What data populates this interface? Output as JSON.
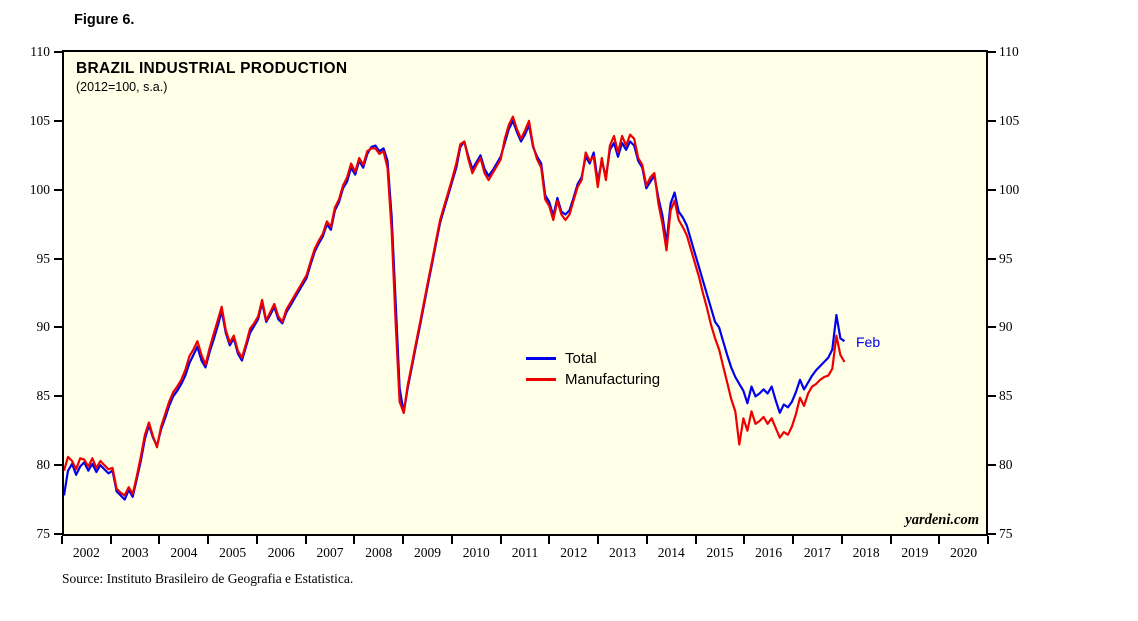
{
  "figure_label": "Figure 6.",
  "source": "Source: Instituto Brasileiro de Geografia e Estatistica.",
  "chart": {
    "title": "BRAZIL INDUSTRIAL PRODUCTION",
    "subtitle": "(2012=100, s.a.)",
    "watermark": "yardeni.com",
    "annotation": "Feb"
  },
  "colors": {
    "plot_background": "#fffee6",
    "frame_border": "#000000",
    "total_line": "#0000ee",
    "manufacturing_line": "#ee0000"
  },
  "chart_data": {
    "type": "line",
    "title": "BRAZIL INDUSTRIAL PRODUCTION",
    "subtitle": "(2012=100, s.a.)",
    "frequency": "monthly",
    "x_start": "2002-01",
    "x_end": "2018-02",
    "x_axis_years": [
      2002,
      2003,
      2004,
      2005,
      2006,
      2007,
      2008,
      2009,
      2010,
      2011,
      2012,
      2013,
      2014,
      2015,
      2016,
      2017,
      2018,
      2019,
      2020
    ],
    "y_ticks": [
      75,
      80,
      85,
      90,
      95,
      100,
      105,
      110
    ],
    "ylim": [
      75,
      110
    ],
    "grid": false,
    "legend_position": "center",
    "annotation": {
      "text": "Feb",
      "series": "Total",
      "color": "#0000ee"
    },
    "series": [
      {
        "name": "Total",
        "color": "#0000ee",
        "values": [
          77.8,
          79.6,
          80.1,
          79.3,
          79.9,
          80.2,
          79.6,
          80.1,
          79.5,
          80.0,
          79.7,
          79.4,
          79.6,
          78.1,
          77.8,
          77.5,
          78.2,
          77.7,
          79.0,
          80.3,
          81.9,
          82.9,
          82.0,
          81.4,
          82.6,
          83.4,
          84.3,
          85.0,
          85.4,
          85.9,
          86.5,
          87.4,
          88.0,
          88.6,
          87.6,
          87.1,
          88.2,
          89.1,
          90.1,
          91.2,
          89.6,
          88.7,
          89.2,
          88.1,
          87.6,
          88.6,
          89.6,
          90.1,
          90.6,
          91.8,
          90.4,
          90.9,
          91.5,
          90.6,
          90.3,
          91.1,
          91.6,
          92.1,
          92.6,
          93.1,
          93.6,
          94.6,
          95.5,
          96.1,
          96.6,
          97.5,
          97.1,
          98.5,
          99.1,
          100.1,
          100.6,
          101.6,
          101.1,
          102.1,
          101.6,
          102.6,
          103.1,
          103.2,
          102.8,
          103.0,
          102.1,
          98.1,
          91.9,
          85.6,
          83.8,
          85.6,
          87.1,
          88.6,
          90.1,
          91.6,
          93.1,
          94.6,
          96.1,
          97.6,
          98.6,
          99.6,
          100.6,
          101.6,
          103.1,
          103.5,
          102.4,
          101.5,
          102.0,
          102.5,
          101.5,
          101.0,
          101.4,
          101.9,
          102.4,
          103.4,
          104.4,
          105.0,
          104.2,
          103.5,
          104.0,
          104.7,
          103.1,
          102.4,
          101.9,
          99.6,
          99.1,
          98.1,
          99.4,
          98.4,
          98.2,
          98.5,
          99.4,
          100.4,
          100.9,
          102.4,
          101.9,
          102.7,
          100.6,
          102.1,
          100.9,
          102.9,
          103.4,
          102.4,
          103.4,
          102.9,
          103.5,
          103.2,
          102.1,
          101.6,
          100.1,
          100.6,
          101.0,
          99.4,
          98.1,
          96.1,
          99.0,
          99.8,
          98.4,
          98.0,
          97.4,
          96.4,
          95.4,
          94.4,
          93.4,
          92.4,
          91.4,
          90.4,
          90.0,
          89.0,
          88.0,
          87.1,
          86.4,
          85.9,
          85.4,
          84.5,
          85.7,
          85.0,
          85.2,
          85.5,
          85.2,
          85.7,
          84.7,
          83.8,
          84.4,
          84.2,
          84.6,
          85.3,
          86.2,
          85.5,
          86.0,
          86.5,
          86.9,
          87.2,
          87.5,
          87.8,
          88.4,
          90.9,
          89.2,
          89.0
        ]
      },
      {
        "name": "Manufacturing",
        "color": "#ee0000",
        "values": [
          79.6,
          80.6,
          80.3,
          79.7,
          80.5,
          80.4,
          79.9,
          80.5,
          79.8,
          80.3,
          80.0,
          79.7,
          79.8,
          78.3,
          78.0,
          77.8,
          78.4,
          77.9,
          79.2,
          80.6,
          82.2,
          83.1,
          82.1,
          81.3,
          82.8,
          83.7,
          84.6,
          85.3,
          85.7,
          86.2,
          86.9,
          87.9,
          88.4,
          89.0,
          88.0,
          87.3,
          88.5,
          89.5,
          90.5,
          91.5,
          89.8,
          88.9,
          89.4,
          88.3,
          87.8,
          88.8,
          89.9,
          90.3,
          90.8,
          92.0,
          90.5,
          91.1,
          91.7,
          90.8,
          90.4,
          91.3,
          91.8,
          92.3,
          92.8,
          93.3,
          93.8,
          94.8,
          95.7,
          96.3,
          96.8,
          97.7,
          97.3,
          98.7,
          99.3,
          100.3,
          100.9,
          101.9,
          101.3,
          102.3,
          101.8,
          102.8,
          103.0,
          103.0,
          102.6,
          102.8,
          101.6,
          97.1,
          90.4,
          84.6,
          83.8,
          85.8,
          87.3,
          88.8,
          90.3,
          91.8,
          93.3,
          94.8,
          96.3,
          97.8,
          98.8,
          99.8,
          100.8,
          101.9,
          103.3,
          103.5,
          102.2,
          101.2,
          101.8,
          102.3,
          101.2,
          100.7,
          101.2,
          101.7,
          102.2,
          103.7,
          104.7,
          105.3,
          104.4,
          103.7,
          104.3,
          105.0,
          103.2,
          102.2,
          101.6,
          99.3,
          98.8,
          97.8,
          99.2,
          98.2,
          97.8,
          98.2,
          99.2,
          100.2,
          100.7,
          102.7,
          102.1,
          102.4,
          100.2,
          102.3,
          100.7,
          103.2,
          103.9,
          102.7,
          103.9,
          103.2,
          104.0,
          103.7,
          102.3,
          101.8,
          100.3,
          100.9,
          101.2,
          99.0,
          97.5,
          95.6,
          98.5,
          99.2,
          97.8,
          97.3,
          96.7,
          95.7,
          94.7,
          93.7,
          92.5,
          91.4,
          90.2,
          89.2,
          88.4,
          87.2,
          86.0,
          84.8,
          83.9,
          81.5,
          83.4,
          82.5,
          83.9,
          83.0,
          83.2,
          83.5,
          83.0,
          83.4,
          82.7,
          82.0,
          82.4,
          82.2,
          82.8,
          83.7,
          84.9,
          84.3,
          85.2,
          85.7,
          85.9,
          86.2,
          86.4,
          86.5,
          87.0,
          89.4,
          88.0,
          87.5
        ]
      }
    ]
  }
}
